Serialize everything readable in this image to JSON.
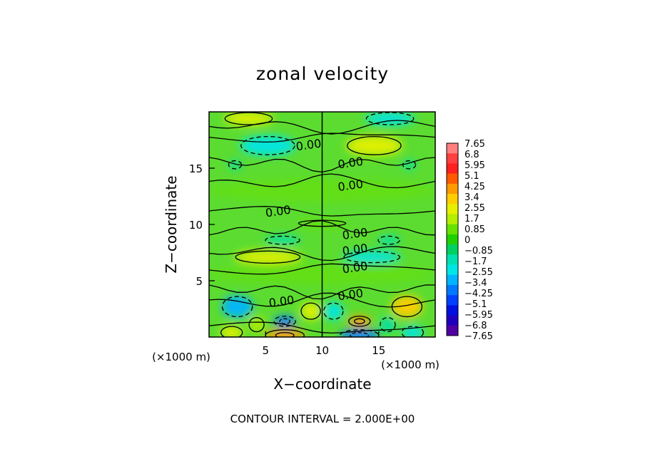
{
  "chart_data": {
    "type": "heatmap",
    "title": "zonal velocity",
    "xlabel": "X−coordinate",
    "ylabel": "Z−coordinate",
    "x_unit_label": "(×1000 m)",
    "z_unit_label": "(×1000 m)",
    "footer": "CONTOUR INTERVAL = 2.000E+00",
    "xlim": [
      0,
      20
    ],
    "zlim": [
      0,
      20
    ],
    "x_ticks": [
      5,
      10,
      15
    ],
    "z_ticks": [
      5,
      10,
      15
    ],
    "contour_labels": [
      {
        "text": "0.00",
        "x": 8.8,
        "z": 17.1
      },
      {
        "text": "0.00",
        "x": 12.5,
        "z": 15.5
      },
      {
        "text": "0.00",
        "x": 12.5,
        "z": 13.5
      },
      {
        "text": "0.00",
        "x": 6.1,
        "z": 11.2
      },
      {
        "text": "0.00",
        "x": 12.9,
        "z": 9.2
      },
      {
        "text": "0.00",
        "x": 12.9,
        "z": 7.8
      },
      {
        "text": "0.00",
        "x": 12.9,
        "z": 6.2
      },
      {
        "text": "0.00",
        "x": 6.4,
        "z": 3.2
      },
      {
        "text": "0.00",
        "x": 12.5,
        "z": 3.8
      }
    ],
    "colorbar": {
      "levels": [
        "7.65",
        "6.8",
        "5.95",
        "5.1",
        "4.25",
        "3.4",
        "2.55",
        "1.7",
        "0.85",
        "0",
        "−0.85",
        "−1.7",
        "−2.55",
        "−3.4",
        "−4.25",
        "−5.1",
        "−5.95",
        "−6.8",
        "−7.65"
      ],
      "colors": [
        "#ff8080",
        "#ff4040",
        "#ff2020",
        "#ff5a00",
        "#ff9a00",
        "#ffce00",
        "#e4f000",
        "#b4ee00",
        "#66e200",
        "#20d000",
        "#00d060",
        "#00e0b0",
        "#00e6e6",
        "#00b4ff",
        "#0078ff",
        "#0040ff",
        "#0010e0",
        "#2000c0",
        "#5000a0"
      ]
    },
    "background_color": "#5cdc30",
    "features": [
      {
        "x": 3.5,
        "z": 19.4,
        "rx": 2.2,
        "rz": 0.6,
        "value": 2.6
      },
      {
        "x": 16.0,
        "z": 19.4,
        "rx": 2.2,
        "rz": 0.6,
        "value": -2.6
      },
      {
        "x": 5.2,
        "z": 17.0,
        "rx": 2.5,
        "rz": 0.9,
        "value": -2.3
      },
      {
        "x": 14.6,
        "z": 17.0,
        "rx": 2.5,
        "rz": 0.9,
        "value": 2.3
      },
      {
        "x": 2.3,
        "z": 15.3,
        "rx": 0.6,
        "rz": 0.4,
        "value": -1.6
      },
      {
        "x": 17.7,
        "z": 15.3,
        "rx": 0.6,
        "rz": 0.4,
        "value": -1.6
      },
      {
        "x": 6.5,
        "z": 8.6,
        "rx": 1.6,
        "rz": 0.4,
        "value": -1.4
      },
      {
        "x": 15.9,
        "z": 8.6,
        "rx": 1.0,
        "rz": 0.4,
        "value": -1.4
      },
      {
        "x": 5.2,
        "z": 7.1,
        "rx": 3.0,
        "rz": 0.6,
        "value": 2.6
      },
      {
        "x": 14.4,
        "z": 7.1,
        "rx": 2.6,
        "rz": 0.55,
        "value": -2.3
      },
      {
        "x": 2.5,
        "z": 2.7,
        "rx": 1.4,
        "rz": 1.0,
        "value": -3.3
      },
      {
        "x": 17.5,
        "z": 2.7,
        "rx": 1.4,
        "rz": 1.0,
        "value": 3.0
      },
      {
        "x": 6.7,
        "z": 1.4,
        "rx": 1.0,
        "rz": 0.5,
        "value": -4.6
      },
      {
        "x": 13.3,
        "z": 1.4,
        "rx": 1.0,
        "rz": 0.5,
        "value": 4.6
      },
      {
        "x": 6.7,
        "z": 0.15,
        "rx": 1.8,
        "rz": 0.55,
        "value": 4.6
      },
      {
        "x": 13.3,
        "z": 0.15,
        "rx": 1.8,
        "rz": 0.55,
        "value": -4.4
      },
      {
        "x": 2.0,
        "z": 0.4,
        "rx": 1.0,
        "rz": 0.6,
        "value": 2.6
      },
      {
        "x": 18.0,
        "z": 0.4,
        "rx": 1.0,
        "rz": 0.6,
        "value": -2.6
      },
      {
        "x": 9.0,
        "z": 2.3,
        "rx": 0.9,
        "rz": 0.8,
        "value": 2.3
      },
      {
        "x": 11.0,
        "z": 2.3,
        "rx": 0.9,
        "rz": 0.8,
        "value": -2.3
      },
      {
        "x": 4.2,
        "z": 1.1,
        "rx": 0.7,
        "rz": 0.7,
        "value": 2.0
      },
      {
        "x": 15.8,
        "z": 1.1,
        "rx": 0.7,
        "rz": 0.7,
        "value": -2.0
      },
      {
        "x": 10.0,
        "z": 10.1,
        "rx": 2.2,
        "rz": 0.3,
        "value": 1.0
      },
      {
        "x": 10.0,
        "z": 13.0,
        "rx": 10.0,
        "rz": 1.0,
        "value": 1.2
      },
      {
        "x": 10.0,
        "z": 5.6,
        "rx": 10.0,
        "rz": 0.9,
        "value": 1.1
      }
    ]
  }
}
